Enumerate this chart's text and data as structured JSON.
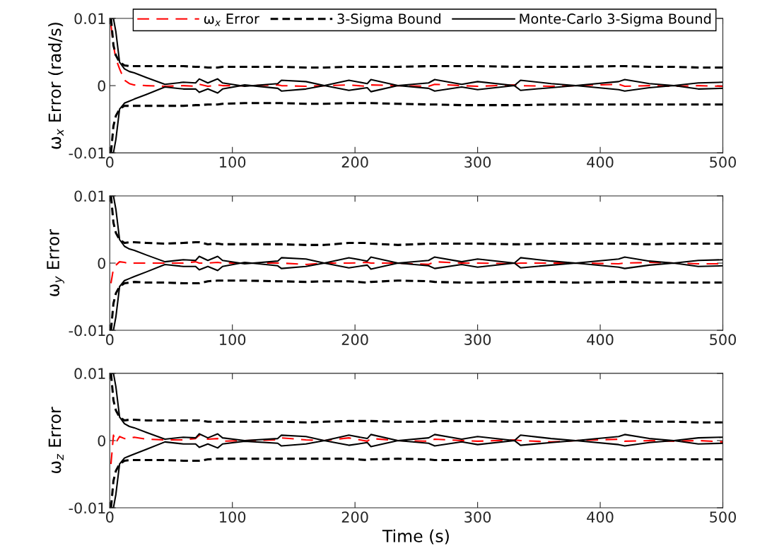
{
  "chart_data": [
    {
      "type": "line",
      "ylabel": "ω$_{x}$ Error (rad/s)",
      "legend": "top right",
      "grid": false,
      "xlim": [
        0,
        500
      ],
      "xticks": [
        0,
        100,
        200,
        300,
        400,
        500
      ],
      "ylim": [
        -0.01,
        0.01
      ],
      "yticks": [
        -0.01,
        0,
        0.01
      ],
      "x": [
        1,
        3,
        5,
        8,
        12,
        16,
        20,
        30,
        45,
        60,
        70,
        73,
        80,
        88,
        92,
        110,
        137,
        140,
        160,
        175,
        195,
        210,
        213,
        235,
        260,
        265,
        287,
        300,
        330,
        335,
        360,
        380,
        415,
        420,
        440,
        460,
        480,
        500
      ],
      "series": [
        {
          "name": "ω$_{x}$ Error",
          "color": "#ff0000",
          "line_style": "dashed",
          "values": [
            0.009,
            0.006,
            0.004,
            0.0025,
            0.0008,
            0.0003,
            0.0001,
            0.0,
            -0.0001,
            0.0,
            -0.0001,
            0.0002,
            -0.0001,
            0.0001,
            0.0,
            0.0,
            0.0001,
            0.0,
            -0.0001,
            0.0,
            0.0001,
            -0.0001,
            0.0001,
            0.0,
            -0.0001,
            0.0002,
            0.0,
            -0.0001,
            0.0001,
            0.0,
            -0.0001,
            0.0,
            0.0002,
            -0.0001,
            0.0,
            -0.0001,
            0.0,
            -0.0001
          ]
        },
        {
          "name": "3-Sigma Bound",
          "color": "#000000",
          "line_style": "dashed",
          "values": [
            0.01,
            0.006,
            0.0045,
            0.0035,
            0.003,
            0.0029,
            0.0029,
            0.0029,
            0.0029,
            0.0029,
            0.0028,
            0.0028,
            0.0027,
            0.0027,
            0.0028,
            0.0028,
            0.0028,
            0.0028,
            0.0027,
            0.0027,
            0.0028,
            0.0028,
            0.0028,
            0.0028,
            0.0029,
            0.0029,
            0.0029,
            0.0029,
            0.0028,
            0.0028,
            0.0028,
            0.0028,
            0.0029,
            0.0029,
            0.0028,
            0.0028,
            0.0027,
            0.0027
          ]
        },
        {
          "color": "#000000",
          "line_style": "dashed",
          "values": [
            -0.01,
            -0.006,
            -0.0045,
            -0.0035,
            -0.003,
            -0.003,
            -0.003,
            -0.003,
            -0.003,
            -0.003,
            -0.0029,
            -0.0029,
            -0.0028,
            -0.0028,
            -0.0027,
            -0.0026,
            -0.0026,
            -0.0026,
            -0.0027,
            -0.0027,
            -0.0026,
            -0.0026,
            -0.0026,
            -0.0027,
            -0.0028,
            -0.0028,
            -0.0029,
            -0.0029,
            -0.0029,
            -0.0029,
            -0.0028,
            -0.0028,
            -0.0028,
            -0.0028,
            -0.0028,
            -0.0028,
            -0.0028,
            -0.0028
          ]
        },
        {
          "name": "Monte-Carlo 3-Sigma Bound",
          "color": "#000000",
          "line_style": "solid",
          "values": [
            0.01,
            0.01,
            0.008,
            0.0035,
            0.0025,
            0.0021,
            0.0019,
            0.0012,
            0.0002,
            0.0005,
            0.0004,
            0.001,
            0.0004,
            0.001,
            0.0004,
            -0.0001,
            0.0003,
            0.0008,
            0.0006,
            0.0,
            0.0008,
            0.0003,
            0.0009,
            0.0,
            0.0004,
            0.0009,
            0.0002,
            0.0006,
            0.0,
            0.0008,
            0.0003,
            0.0,
            0.0006,
            0.0009,
            0.0003,
            0.0,
            0.0004,
            0.0005
          ]
        },
        {
          "color": "#000000",
          "line_style": "solid",
          "values": [
            -0.01,
            -0.01,
            -0.008,
            -0.0035,
            -0.0026,
            -0.0023,
            -0.002,
            -0.0013,
            -0.0002,
            -0.0005,
            -0.0005,
            -0.001,
            -0.0005,
            -0.0011,
            -0.0005,
            0.0001,
            -0.0004,
            -0.0008,
            -0.0005,
            0.0,
            -0.0007,
            -0.0003,
            -0.0009,
            0.0,
            -0.0004,
            -0.0008,
            -0.0002,
            -0.0006,
            0.0,
            -0.0007,
            -0.0003,
            0.0,
            -0.0006,
            -0.0008,
            -0.0003,
            0.0,
            -0.0005,
            -0.0004
          ]
        }
      ]
    },
    {
      "type": "line",
      "ylabel": "ω$_{y}$ Error",
      "grid": false,
      "xlim": [
        0,
        500
      ],
      "xticks": [
        0,
        100,
        200,
        300,
        400,
        500
      ],
      "ylim": [
        -0.01,
        0.01
      ],
      "yticks": [
        -0.01,
        0,
        0.01
      ],
      "x": [
        1,
        3,
        5,
        8,
        12,
        16,
        20,
        30,
        45,
        60,
        70,
        73,
        80,
        88,
        92,
        110,
        137,
        140,
        160,
        175,
        195,
        210,
        213,
        235,
        260,
        265,
        287,
        300,
        330,
        335,
        360,
        380,
        415,
        420,
        440,
        460,
        480,
        500
      ],
      "series": [
        {
          "color": "#ff0000",
          "line_style": "dashed",
          "values": [
            -0.003,
            -0.0008,
            -0.0003,
            0.0002,
            0.0001,
            -0.0001,
            0.0,
            0.0,
            0.0,
            0.0,
            0.0002,
            0.0,
            0.0,
            0.0001,
            0.0,
            0.0,
            0.0,
            0.0,
            -0.0002,
            0.0,
            0.0,
            0.0001,
            0.0,
            0.0,
            -0.0002,
            0.0002,
            0.0,
            0.0,
            -0.0001,
            0.0,
            0.0,
            0.0,
            -0.0001,
            0.0,
            0.0001,
            0.0,
            -0.0001,
            -0.0001
          ]
        },
        {
          "color": "#000000",
          "line_style": "dashed",
          "values": [
            0.01,
            0.006,
            0.0045,
            0.0035,
            0.003,
            0.0031,
            0.0031,
            0.003,
            0.0029,
            0.003,
            0.0031,
            0.0031,
            0.0028,
            0.0029,
            0.0028,
            0.0028,
            0.0028,
            0.0028,
            0.0027,
            0.0027,
            0.003,
            0.003,
            0.0029,
            0.0027,
            0.0029,
            0.0029,
            0.0029,
            0.0029,
            0.0028,
            0.0028,
            0.0029,
            0.0029,
            0.0029,
            0.0029,
            0.0028,
            0.0029,
            0.0029,
            0.0029
          ]
        },
        {
          "color": "#000000",
          "line_style": "dashed",
          "values": [
            -0.01,
            -0.006,
            -0.0045,
            -0.0035,
            -0.003,
            -0.0029,
            -0.0028,
            -0.0029,
            -0.0029,
            -0.003,
            -0.003,
            -0.003,
            -0.0027,
            -0.0026,
            -0.0026,
            -0.0026,
            -0.0027,
            -0.0027,
            -0.0028,
            -0.0027,
            -0.0027,
            -0.0029,
            -0.0028,
            -0.0026,
            -0.0027,
            -0.0028,
            -0.0029,
            -0.0029,
            -0.0028,
            -0.0028,
            -0.0028,
            -0.0029,
            -0.0028,
            -0.0028,
            -0.0029,
            -0.0029,
            -0.0029,
            -0.0029
          ]
        },
        {
          "color": "#000000",
          "line_style": "solid",
          "values": [
            0.01,
            0.01,
            0.008,
            0.0035,
            0.0025,
            0.0021,
            0.0019,
            0.0012,
            0.0002,
            0.0005,
            0.0004,
            0.001,
            0.0004,
            0.001,
            0.0004,
            -0.0001,
            0.0003,
            0.0008,
            0.0006,
            0.0,
            0.0008,
            0.0003,
            0.0009,
            0.0,
            0.0004,
            0.0009,
            0.0002,
            0.0006,
            0.0,
            0.0008,
            0.0003,
            0.0,
            0.0006,
            0.0009,
            0.0003,
            0.0,
            0.0004,
            0.0005
          ]
        },
        {
          "color": "#000000",
          "line_style": "solid",
          "values": [
            -0.01,
            -0.01,
            -0.008,
            -0.0035,
            -0.0026,
            -0.0023,
            -0.002,
            -0.0013,
            -0.0002,
            -0.0005,
            -0.0005,
            -0.001,
            -0.0005,
            -0.0011,
            -0.0005,
            0.0001,
            -0.0004,
            -0.0008,
            -0.0005,
            0.0,
            -0.0007,
            -0.0003,
            -0.0009,
            0.0,
            -0.0004,
            -0.0008,
            -0.0002,
            -0.0006,
            0.0,
            -0.0007,
            -0.0003,
            0.0,
            -0.0006,
            -0.0008,
            -0.0003,
            0.0,
            -0.0005,
            -0.0004
          ]
        }
      ]
    },
    {
      "type": "line",
      "ylabel": "ω$_{z}$ Error",
      "xlabel": "Time (s)",
      "grid": false,
      "xlim": [
        0,
        500
      ],
      "xticks": [
        0,
        100,
        200,
        300,
        400,
        500
      ],
      "ylim": [
        -0.01,
        0.01
      ],
      "yticks": [
        -0.01,
        0,
        0.01
      ],
      "x": [
        1,
        3,
        5,
        8,
        12,
        16,
        20,
        30,
        45,
        60,
        70,
        73,
        80,
        88,
        92,
        110,
        137,
        140,
        160,
        175,
        195,
        210,
        213,
        235,
        260,
        265,
        287,
        300,
        330,
        335,
        360,
        380,
        415,
        420,
        440,
        460,
        480,
        500
      ],
      "series": [
        {
          "color": "#ff0000",
          "line_style": "dashed",
          "values": [
            -0.0035,
            0.0008,
            -0.0003,
            0.0006,
            0.0003,
            0.0003,
            0.0005,
            0.0002,
            0.0001,
            0.0001,
            0.0003,
            0.0008,
            0.0002,
            0.0003,
            -0.0001,
            0.0,
            0.0001,
            0.0004,
            0.0001,
            0.0,
            0.0004,
            -0.0001,
            0.0003,
            0.0,
            -0.0001,
            0.0002,
            0.0,
            -0.0001,
            0.0001,
            0.0,
            -0.0002,
            0.0,
            0.0002,
            -0.0001,
            0.0,
            -0.0001,
            0.0,
            -0.0002
          ]
        },
        {
          "color": "#000000",
          "line_style": "dashed",
          "values": [
            0.01,
            0.006,
            0.0045,
            0.0035,
            0.003,
            0.0031,
            0.0031,
            0.003,
            0.003,
            0.003,
            0.003,
            0.003,
            0.0028,
            0.0028,
            0.0028,
            0.0028,
            0.0028,
            0.0028,
            0.0027,
            0.0028,
            0.0029,
            0.0029,
            0.0029,
            0.0028,
            0.0028,
            0.0029,
            0.0029,
            0.0029,
            0.0028,
            0.0028,
            0.0028,
            0.0028,
            0.0029,
            0.0029,
            0.0028,
            0.0028,
            0.0027,
            0.0027
          ]
        },
        {
          "color": "#000000",
          "line_style": "dashed",
          "values": [
            -0.01,
            -0.006,
            -0.0045,
            -0.0035,
            -0.003,
            -0.0029,
            -0.0029,
            -0.0029,
            -0.0029,
            -0.003,
            -0.003,
            -0.003,
            -0.0028,
            -0.0027,
            -0.0027,
            -0.0027,
            -0.0027,
            -0.0027,
            -0.0027,
            -0.0027,
            -0.0027,
            -0.0029,
            -0.0028,
            -0.0027,
            -0.0028,
            -0.0029,
            -0.0029,
            -0.0029,
            -0.0028,
            -0.0028,
            -0.0028,
            -0.0028,
            -0.0028,
            -0.0028,
            -0.0028,
            -0.0028,
            -0.0028,
            -0.0028
          ]
        },
        {
          "color": "#000000",
          "line_style": "solid",
          "values": [
            0.01,
            0.01,
            0.008,
            0.0035,
            0.0025,
            0.0021,
            0.0019,
            0.0012,
            0.0002,
            0.0005,
            0.0004,
            0.001,
            0.0004,
            0.001,
            0.0004,
            0.0,
            0.0003,
            0.0008,
            0.0006,
            0.0,
            0.0008,
            0.0003,
            0.0009,
            0.0,
            0.0004,
            0.0009,
            0.0002,
            0.0006,
            0.0,
            0.0008,
            0.0003,
            0.0,
            0.0006,
            0.0009,
            0.0003,
            0.0,
            0.0004,
            0.0005
          ]
        },
        {
          "color": "#000000",
          "line_style": "solid",
          "values": [
            -0.01,
            -0.01,
            -0.008,
            -0.0035,
            -0.0026,
            -0.0023,
            -0.002,
            -0.0013,
            -0.0002,
            -0.0005,
            -0.0005,
            -0.001,
            -0.0005,
            -0.0011,
            -0.0005,
            -0.0001,
            -0.0004,
            -0.0008,
            -0.0005,
            0.0,
            -0.0007,
            -0.0003,
            -0.0009,
            0.0,
            -0.0004,
            -0.0008,
            -0.0002,
            -0.0006,
            0.0,
            -0.0007,
            -0.0003,
            0.0,
            -0.0006,
            -0.0008,
            -0.0003,
            0.0,
            -0.0005,
            -0.0004
          ]
        }
      ]
    }
  ]
}
